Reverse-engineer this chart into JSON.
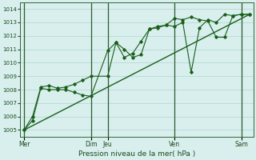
{
  "background_color": "#d8efee",
  "grid_color": "#b0d4cc",
  "line_color": "#1a5e1a",
  "marker_color": "#1a5e1a",
  "xlabel": "Pression niveau de la mer( hPa )",
  "ylim": [
    1004.5,
    1014.5
  ],
  "yticks": [
    1005,
    1006,
    1007,
    1008,
    1009,
    1010,
    1011,
    1012,
    1013,
    1014
  ],
  "day_labels": [
    "Mer",
    "Dim",
    "Jeu",
    "Ven",
    "Sam"
  ],
  "day_positions": [
    0,
    8,
    10,
    18,
    26
  ],
  "xlim": [
    -0.5,
    27.5
  ],
  "series1_x": [
    0,
    1,
    2,
    3,
    4,
    5,
    6,
    7,
    8,
    10,
    11,
    12,
    13,
    14,
    15,
    16,
    17,
    18,
    19,
    20,
    21,
    22,
    23,
    24,
    25,
    26,
    27
  ],
  "series1_y": [
    1005.0,
    1005.7,
    1008.1,
    1008.0,
    1008.0,
    1008.0,
    1007.8,
    1007.6,
    1007.5,
    1010.9,
    1011.5,
    1010.4,
    1010.7,
    1011.6,
    1012.5,
    1012.7,
    1012.8,
    1013.3,
    1013.2,
    1013.4,
    1013.2,
    1013.1,
    1011.9,
    1011.9,
    1013.5,
    1013.6,
    1013.6
  ],
  "series2_x": [
    0,
    1,
    2,
    3,
    4,
    5,
    6,
    7,
    8,
    10,
    11,
    12,
    13,
    14,
    15,
    16,
    17,
    18,
    19,
    20,
    21,
    22,
    23,
    24,
    25,
    26,
    27
  ],
  "series2_y": [
    1005.0,
    1006.0,
    1008.2,
    1008.3,
    1008.1,
    1008.2,
    1008.4,
    1008.7,
    1009.0,
    1009.0,
    1011.5,
    1011.0,
    1010.4,
    1010.6,
    1012.5,
    1012.6,
    1012.8,
    1012.7,
    1013.0,
    1009.3,
    1012.6,
    1013.2,
    1013.0,
    1013.6,
    1013.5,
    1013.6,
    1013.6
  ],
  "trend_x": [
    0,
    27
  ],
  "trend_y": [
    1005.0,
    1013.6
  ]
}
